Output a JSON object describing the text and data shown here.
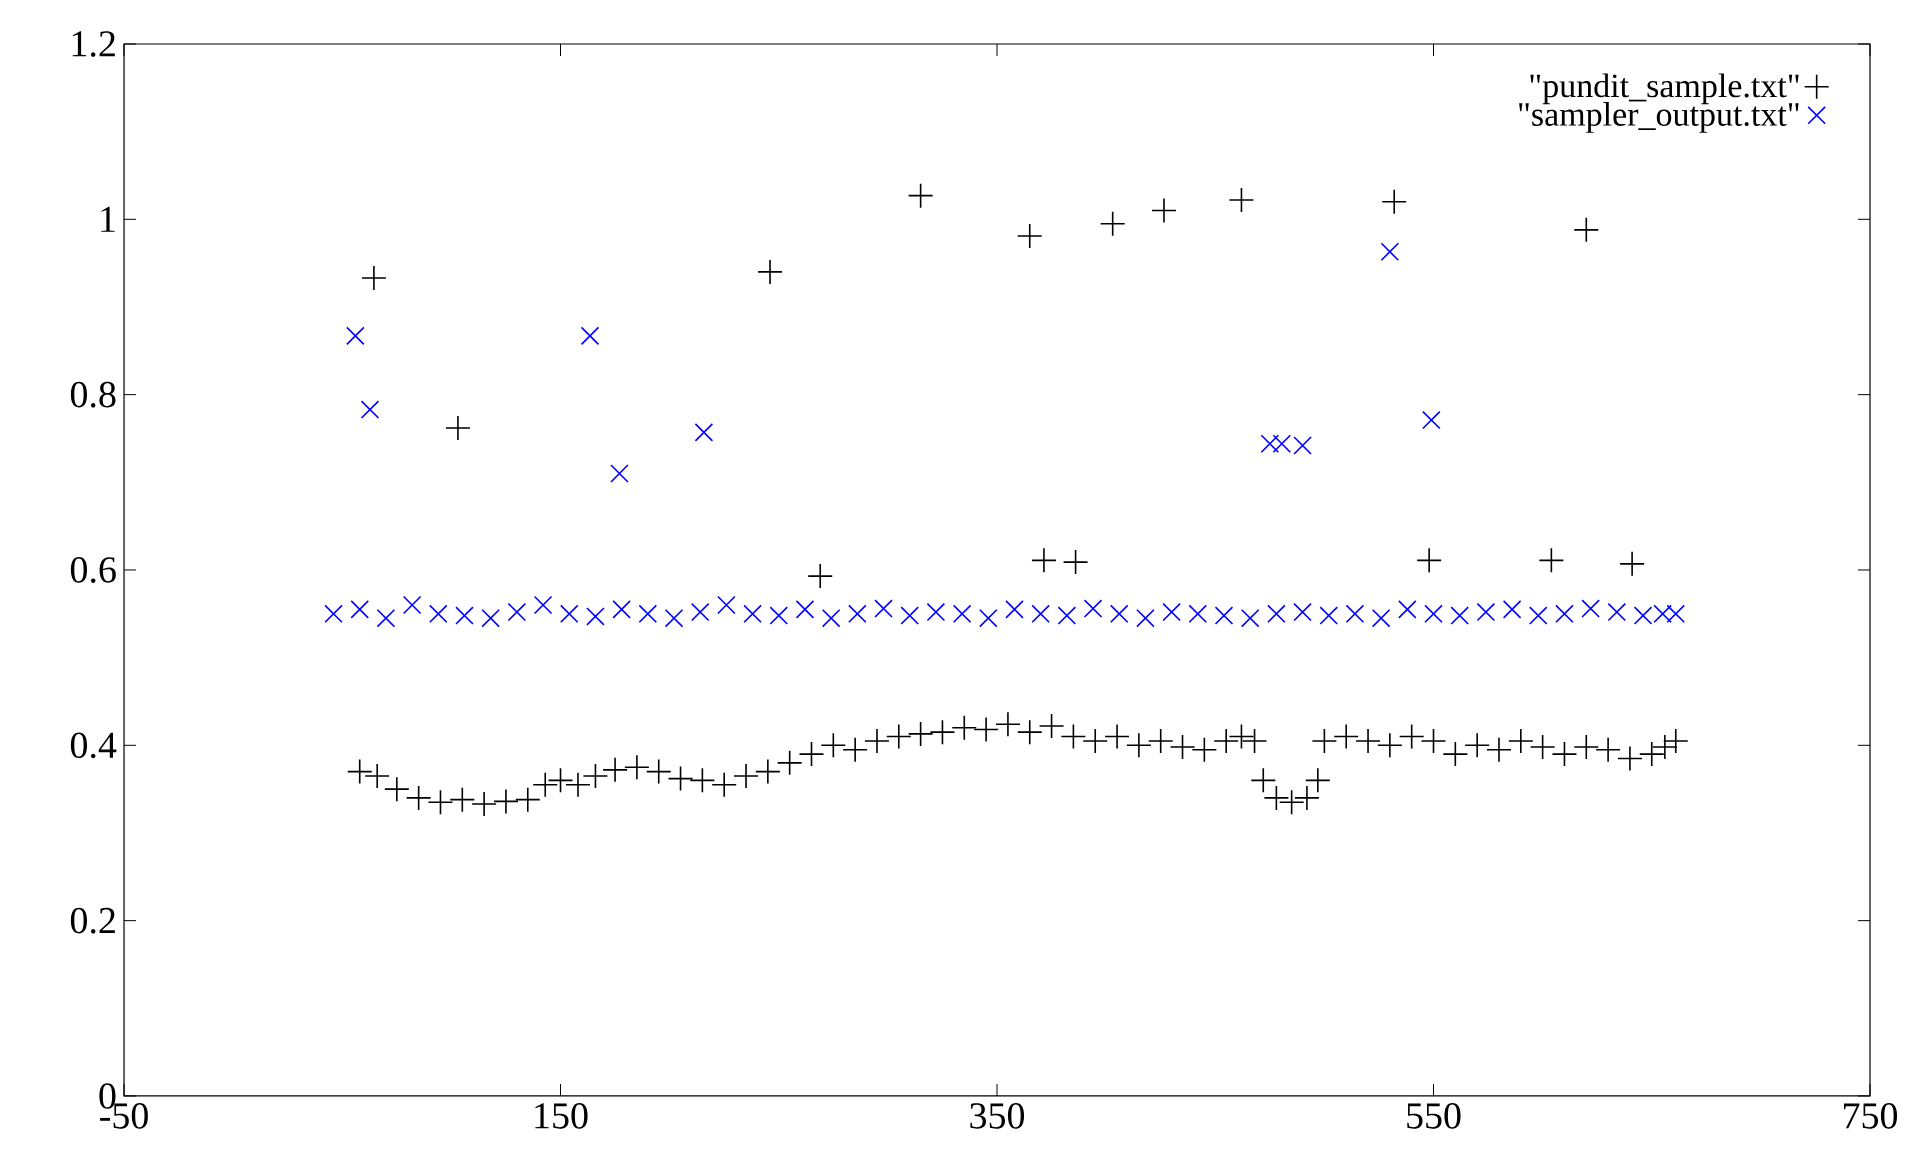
{
  "chart_data": {
    "type": "scatter",
    "xlim": [
      -50,
      750
    ],
    "ylim": [
      0,
      1.2
    ],
    "xticks": [
      -50,
      150,
      350,
      550,
      750
    ],
    "yticks": [
      0,
      0.2,
      0.4,
      0.6,
      0.8,
      1,
      1.2
    ],
    "grid": false,
    "legend": "top right",
    "series": [
      {
        "name": "\"pundit_sample.txt\"",
        "color": "#000000",
        "marker": "plus",
        "x": [
          58,
          66,
          75,
          85,
          95,
          105,
          115,
          125,
          135,
          143,
          150,
          158,
          166,
          175,
          185,
          195,
          205,
          215,
          225,
          235,
          245,
          255,
          265,
          275,
          285,
          295,
          305,
          315,
          325,
          335,
          345,
          355,
          365,
          375,
          385,
          395,
          405,
          415,
          425,
          435,
          445,
          455,
          462,
          468,
          472,
          478,
          485,
          492,
          497,
          500,
          510,
          520,
          530,
          540,
          550,
          560,
          570,
          580,
          590,
          600,
          610,
          620,
          630,
          640,
          650,
          656,
          661,
          64.5,
          103,
          246,
          315,
          365,
          403,
          426.5,
          462,
          532,
          620,
          269,
          371.5,
          386,
          548,
          604,
          641
        ],
        "values": [
          0.37,
          0.365,
          0.35,
          0.34,
          0.335,
          0.338,
          0.333,
          0.336,
          0.338,
          0.355,
          0.36,
          0.355,
          0.365,
          0.372,
          0.375,
          0.37,
          0.362,
          0.36,
          0.355,
          0.365,
          0.37,
          0.38,
          0.39,
          0.4,
          0.395,
          0.405,
          0.41,
          0.413,
          0.415,
          0.42,
          0.418,
          0.424,
          0.415,
          0.422,
          0.41,
          0.405,
          0.41,
          0.4,
          0.405,
          0.398,
          0.395,
          0.405,
          0.41,
          0.405,
          0.36,
          0.34,
          0.335,
          0.34,
          0.36,
          0.405,
          0.41,
          0.405,
          0.4,
          0.41,
          0.405,
          0.39,
          0.4,
          0.395,
          0.405,
          0.398,
          0.39,
          0.398,
          0.395,
          0.385,
          0.39,
          0.398,
          0.405,
          0.933,
          0.762,
          0.94,
          1.027,
          0.981,
          0.995,
          1.01,
          1.022,
          1.02,
          0.988,
          0.593,
          0.611,
          0.609,
          0.611,
          0.611,
          0.607
        ]
      },
      {
        "name": "\"sampler_output.txt\"",
        "color": "#0000ff",
        "marker": "cross",
        "x": [
          46,
          58,
          70,
          82,
          94,
          106,
          118,
          130,
          142,
          154,
          166,
          178,
          190,
          202,
          214,
          226,
          238,
          250,
          262,
          274,
          286,
          298,
          310,
          322,
          334,
          346,
          358,
          370,
          382,
          394,
          406,
          418,
          430,
          442,
          454,
          466,
          478,
          490,
          502,
          514,
          526,
          538,
          550,
          562,
          574,
          586,
          598,
          610,
          622,
          634,
          646,
          655,
          661,
          56,
          62.7,
          163.5,
          177,
          215.7,
          530,
          549,
          475,
          480.5,
          490
        ],
        "values": [
          0.55,
          0.555,
          0.545,
          0.56,
          0.55,
          0.548,
          0.545,
          0.552,
          0.56,
          0.55,
          0.547,
          0.555,
          0.55,
          0.545,
          0.552,
          0.56,
          0.55,
          0.548,
          0.555,
          0.545,
          0.55,
          0.556,
          0.548,
          0.552,
          0.55,
          0.545,
          0.555,
          0.55,
          0.548,
          0.556,
          0.55,
          0.545,
          0.552,
          0.55,
          0.548,
          0.545,
          0.55,
          0.552,
          0.548,
          0.55,
          0.545,
          0.555,
          0.55,
          0.548,
          0.552,
          0.555,
          0.548,
          0.55,
          0.556,
          0.552,
          0.548,
          0.55,
          0.55,
          0.867,
          0.783,
          0.867,
          0.71,
          0.757,
          0.963,
          0.771,
          0.744,
          0.744,
          0.742
        ]
      }
    ]
  }
}
